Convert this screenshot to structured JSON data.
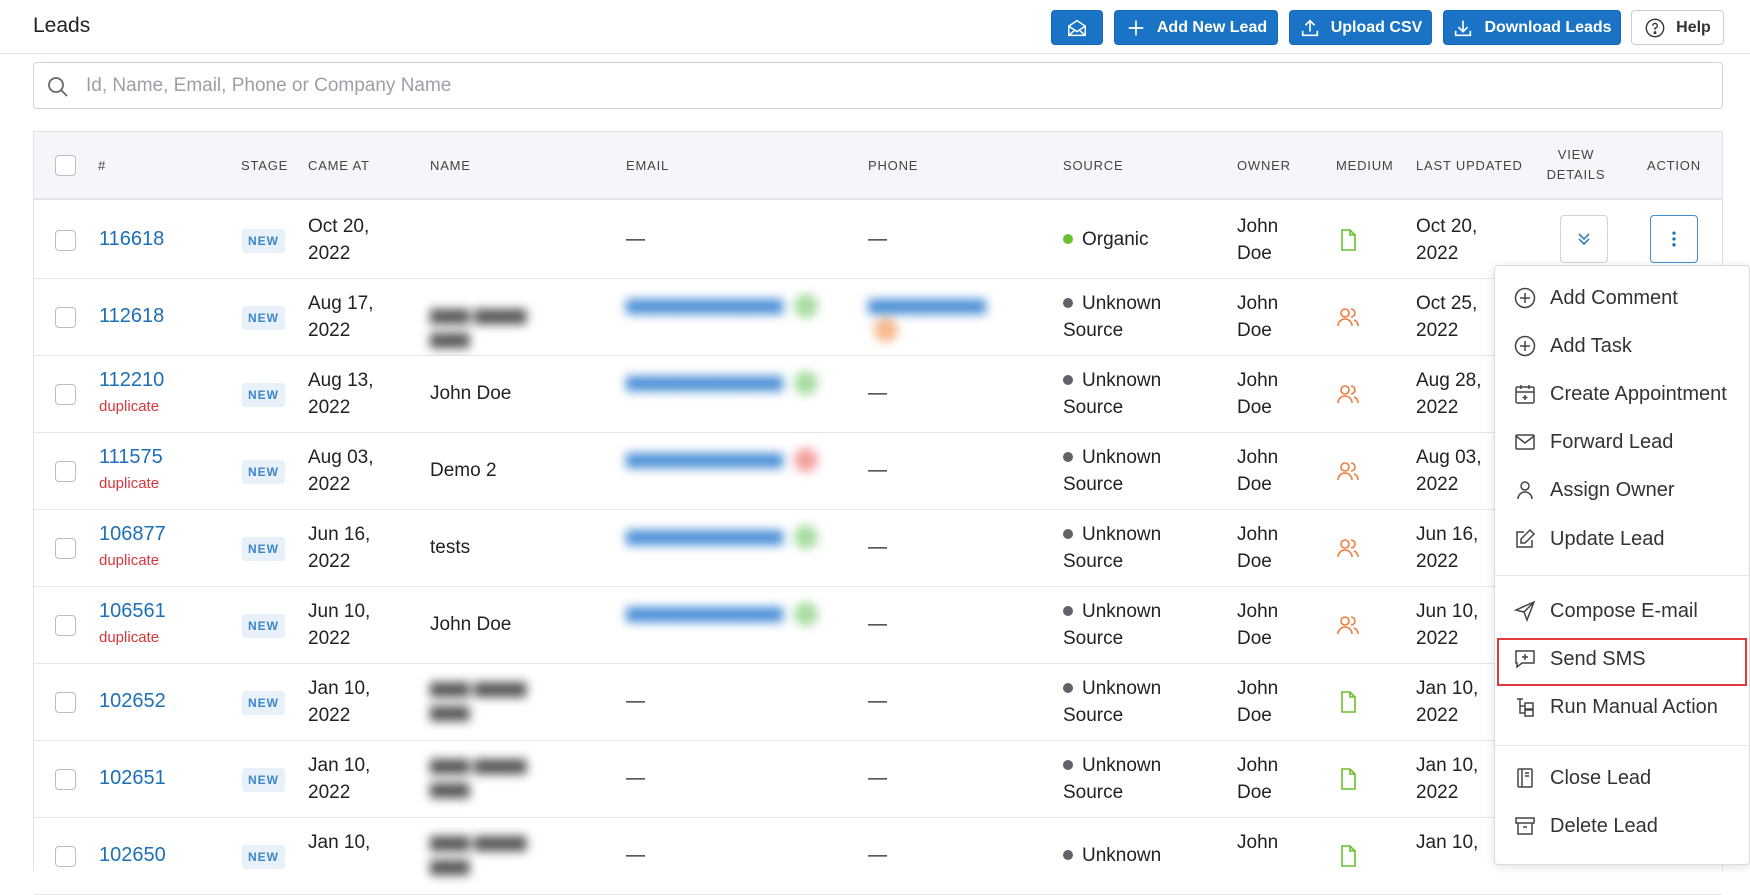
{
  "header": {
    "title": "Leads",
    "add_label": "Add New Lead",
    "upload_label": "Upload CSV",
    "download_label": "Download Leads",
    "help_label": "Help"
  },
  "search": {
    "placeholder": "Id, Name, Email, Phone or Company Name"
  },
  "table": {
    "columns": {
      "id": "#",
      "stage": "STAGE",
      "came_at": "CAME AT",
      "name": "NAME",
      "email": "EMAIL",
      "phone": "PHONE",
      "source": "SOURCE",
      "owner": "OWNER",
      "medium": "MEDIUM",
      "last_updated": "LAST UPDATED",
      "view_details_1": "VIEW",
      "view_details_2": "DETAILS",
      "action": "ACTION"
    },
    "rows": [
      {
        "id": "116618",
        "dup": "",
        "stage": "NEW",
        "came1": "Oct 20,",
        "came2": "2022",
        "name": "",
        "email": "—",
        "phone": "—",
        "src1": "Organic",
        "src2": "",
        "own1": "John",
        "own2": "Doe",
        "upd1": "Oct 20,",
        "upd2": "2022",
        "medium": "doc"
      },
      {
        "id": "112618",
        "dup": "",
        "stage": "NEW",
        "came1": "Aug 17,",
        "came2": "2022",
        "name": "",
        "email": "",
        "phone": "",
        "src1": "Unknown",
        "src2": "Source",
        "own1": "John",
        "own2": "Doe",
        "upd1": "Oct 25,",
        "upd2": "2022",
        "medium": "people"
      },
      {
        "id": "112210",
        "dup": "duplicate",
        "stage": "NEW",
        "came1": "Aug 13,",
        "came2": "2022",
        "name": "John Doe",
        "email": "",
        "phone": "—",
        "src1": "Unknown",
        "src2": "Source",
        "own1": "John",
        "own2": "Doe",
        "upd1": "Aug 28,",
        "upd2": "2022",
        "medium": "people"
      },
      {
        "id": "111575",
        "dup": "duplicate",
        "stage": "NEW",
        "came1": "Aug 03,",
        "came2": "2022",
        "name": "Demo 2",
        "email": "",
        "phone": "—",
        "src1": "Unknown",
        "src2": "Source",
        "own1": "John",
        "own2": "Doe",
        "upd1": "Aug 03,",
        "upd2": "2022",
        "medium": "people"
      },
      {
        "id": "106877",
        "dup": "duplicate",
        "stage": "NEW",
        "came1": "Jun 16,",
        "came2": "2022",
        "name": "tests",
        "email": "",
        "phone": "—",
        "src1": "Unknown",
        "src2": "Source",
        "own1": "John",
        "own2": "Doe",
        "upd1": "Jun 16,",
        "upd2": "2022",
        "medium": "people"
      },
      {
        "id": "106561",
        "dup": "duplicate",
        "stage": "NEW",
        "came1": "Jun 10,",
        "came2": "2022",
        "name": "John Doe",
        "email": "",
        "phone": "—",
        "src1": "Unknown",
        "src2": "Source",
        "own1": "John",
        "own2": "Doe",
        "upd1": "Jun 10,",
        "upd2": "2022",
        "medium": "people"
      },
      {
        "id": "102652",
        "dup": "",
        "stage": "NEW",
        "came1": "Jan 10,",
        "came2": "2022",
        "name": "",
        "email": "—",
        "phone": "—",
        "src1": "Unknown",
        "src2": "Source",
        "own1": "John",
        "own2": "Doe",
        "upd1": "Jan 10,",
        "upd2": "2022",
        "medium": "doc"
      },
      {
        "id": "102651",
        "dup": "",
        "stage": "NEW",
        "came1": "Jan 10,",
        "came2": "2022",
        "name": "",
        "email": "—",
        "phone": "—",
        "src1": "Unknown",
        "src2": "Source",
        "own1": "John",
        "own2": "Doe",
        "upd1": "Jan 10,",
        "upd2": "2022",
        "medium": "doc"
      },
      {
        "id": "102650",
        "dup": "",
        "stage": "NEW",
        "came1": "Jan 10,",
        "came2": "",
        "name": "",
        "email": "—",
        "phone": "—",
        "src1": "Unknown",
        "src2": "",
        "own1": "John",
        "own2": "",
        "upd1": "Jan 10,",
        "upd2": "",
        "medium": "doc"
      }
    ]
  },
  "action_menu": {
    "add_comment": "Add Comment",
    "add_task": "Add Task",
    "create_appointment": "Create Appointment",
    "forward_lead": "Forward Lead",
    "assign_owner": "Assign Owner",
    "update_lead": "Update Lead",
    "compose_email": "Compose E-mail",
    "send_sms": "Send SMS",
    "run_manual_action": "Run Manual Action",
    "close_lead": "Close Lead",
    "delete_lead": "Delete Lead"
  },
  "colors": {
    "primary": "#1a73c5",
    "organic_dot": "#6abf2e",
    "unknown_dot": "#5f6368",
    "duplicate": "#d7363a",
    "medium_doc": "#6abf2e",
    "medium_people": "#f07a3a",
    "highlight": "#e0393e"
  }
}
